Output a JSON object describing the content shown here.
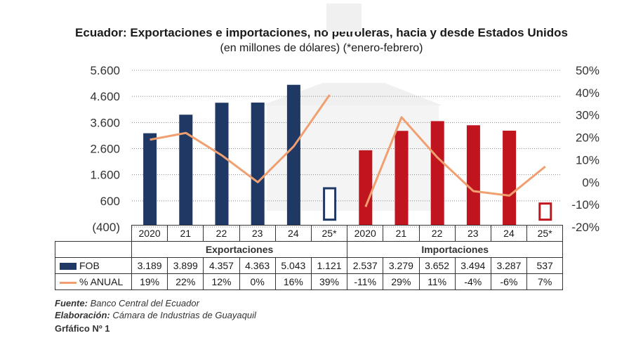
{
  "header": {
    "title": "Ecuador: Exportaciones e importaciones, no petroleras, hacia y desde Estados Unidos",
    "subtitle": "(en millones de dólares) (*enero-febrero)"
  },
  "chart_data": {
    "type": "bar",
    "categories": [
      "2020",
      "21",
      "22",
      "23",
      "24",
      "25*",
      "2020",
      "21",
      "22",
      "23",
      "24",
      "25*"
    ],
    "groups": [
      "Exportaciones",
      "Importaciones"
    ],
    "series": [
      {
        "name": "FOB",
        "axis": "left",
        "values": [
          3189,
          3899,
          4357,
          4363,
          5043,
          1121,
          2537,
          3279,
          3652,
          3494,
          3287,
          537
        ],
        "labels": [
          "3.189",
          "3.899",
          "4.357",
          "4.363",
          "5.043",
          "1.121",
          "2.537",
          "3.279",
          "3.652",
          "3.494",
          "3.287",
          "537"
        ]
      },
      {
        "name": "% ANUAL",
        "axis": "right",
        "type": "line",
        "values": [
          19,
          22,
          12,
          0,
          16,
          39,
          -11,
          29,
          11,
          -4,
          -6,
          7
        ],
        "labels": [
          "19%",
          "22%",
          "12%",
          "0%",
          "16%",
          "39%",
          "-11%",
          "29%",
          "11%",
          "-4%",
          "-6%",
          "7%"
        ]
      }
    ],
    "y_left": {
      "min": -400,
      "max": 5600,
      "ticks": [
        "5.600",
        "4.600",
        "3.600",
        "2.600",
        "1.600",
        "600",
        "(400)"
      ],
      "tick_values": [
        5600,
        4600,
        3600,
        2600,
        1600,
        600,
        -400
      ]
    },
    "y_right": {
      "min": -20,
      "max": 50,
      "ticks": [
        "50%",
        "40%",
        "30%",
        "20%",
        "10%",
        "0%",
        "-10%",
        "-20%"
      ],
      "tick_values": [
        50,
        40,
        30,
        20,
        10,
        0,
        -10,
        -20
      ]
    },
    "colors": {
      "exports": "#1f3864",
      "imports": "#c0141f",
      "line": "#f0a070",
      "grid": "#888888"
    },
    "partial_period_index": [
      5,
      11
    ]
  },
  "table": {
    "exports_label": "Exportaciones",
    "imports_label": "Importaciones",
    "fob_label": "FOB",
    "pct_label": "% ANUAL"
  },
  "footer": {
    "source_label": "Fuente:",
    "source": "Banco Central del Ecuador",
    "made_label": "Elaboración:",
    "made": "Cámara de Industrias de Guayaquil",
    "chart_number": "Grfáfico Nº 1"
  }
}
